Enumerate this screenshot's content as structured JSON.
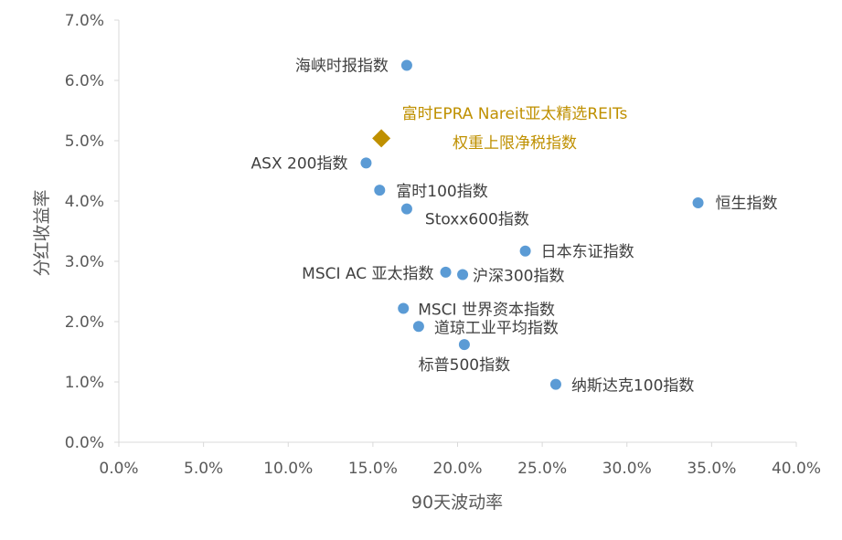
{
  "chart_data": {
    "type": "scatter",
    "title": "",
    "xlabel": "90天波动率",
    "ylabel": "分红收益率",
    "xlim": [
      0,
      40
    ],
    "ylim": [
      0,
      7
    ],
    "x_ticks": [
      "0.0%",
      "5.0%",
      "10.0%",
      "15.0%",
      "20.0%",
      "25.0%",
      "30.0%",
      "35.0%",
      "40.0%"
    ],
    "y_ticks": [
      "0.0%",
      "1.0%",
      "2.0%",
      "3.0%",
      "4.0%",
      "5.0%",
      "6.0%",
      "7.0%"
    ],
    "grid": false,
    "colors": {
      "point": "#5B9BD5",
      "highlight": "#BF9000",
      "axis": "#D9D9D9"
    },
    "points": [
      {
        "name": "海峡时报指数",
        "x": 17.0,
        "y": 6.25
      },
      {
        "name": "ASX 200指数",
        "x": 14.6,
        "y": 4.63
      },
      {
        "name": "富时100指数",
        "x": 15.4,
        "y": 4.18
      },
      {
        "name": "Stoxx600指数",
        "x": 17.0,
        "y": 3.87
      },
      {
        "name": "恒生指数",
        "x": 34.2,
        "y": 3.97
      },
      {
        "name": "日本东证指数",
        "x": 24.0,
        "y": 3.17
      },
      {
        "name": "MSCI AC 亚太指数",
        "x": 19.3,
        "y": 2.82
      },
      {
        "name": "沪深300指数",
        "x": 20.3,
        "y": 2.78
      },
      {
        "name": "MSCI 世界资本指数",
        "x": 16.8,
        "y": 2.22
      },
      {
        "name": "道琼工业平均指数",
        "x": 17.7,
        "y": 1.92
      },
      {
        "name": "标普500指数",
        "x": 20.4,
        "y": 1.62
      },
      {
        "name": "纳斯达克100指数",
        "x": 25.8,
        "y": 0.96
      }
    ],
    "highlight": {
      "label_line1": "富时EPRA Nareit亚太精选REITs",
      "label_line2": "权重上限净税指数",
      "x": 15.5,
      "y": 5.04
    }
  }
}
